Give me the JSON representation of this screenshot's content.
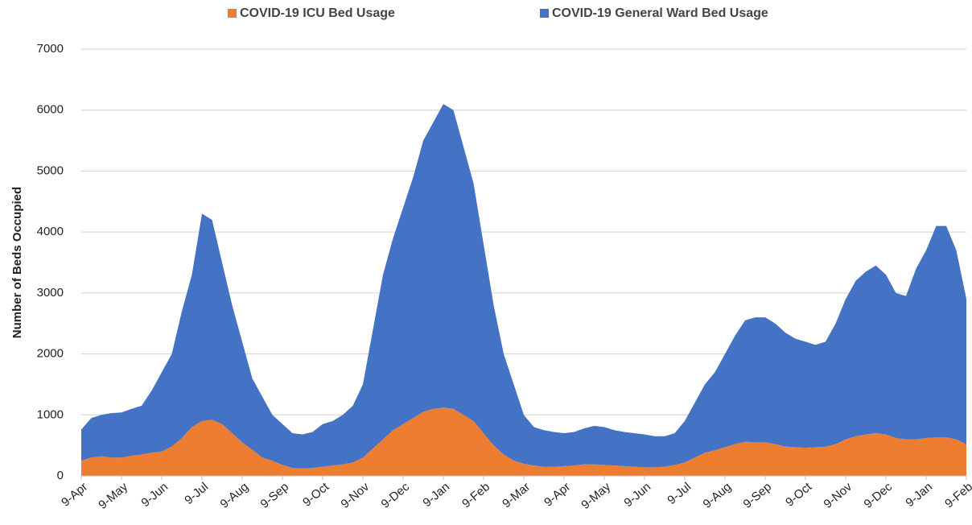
{
  "chart_data": {
    "type": "stacked_area",
    "y_label": "Number of Beds Occupied",
    "categories": [
      "9-Apr",
      null,
      null,
      null,
      "9-May",
      null,
      null,
      null,
      "9-Jun",
      null,
      null,
      null,
      "9-Jul",
      null,
      null,
      null,
      "9-Aug",
      null,
      null,
      null,
      "9-Sep",
      null,
      null,
      null,
      "9-Oct",
      null,
      null,
      null,
      "9-Nov",
      null,
      null,
      null,
      "9-Dec",
      null,
      null,
      null,
      "9-Jan",
      null,
      null,
      null,
      "9-Feb",
      null,
      null,
      null,
      "9-Mar",
      null,
      null,
      null,
      "9-Apr",
      null,
      null,
      null,
      "9-May",
      null,
      null,
      null,
      "9-Jun",
      null,
      null,
      null,
      "9-Jul",
      null,
      null,
      null,
      "9-Aug",
      null,
      null,
      null,
      "9-Sep",
      null,
      null,
      null,
      "9-Oct",
      null,
      null,
      null,
      "9-Nov",
      null,
      null,
      null,
      "9-Dec",
      null,
      null,
      null,
      "9-Jan",
      null,
      null,
      null,
      "9-Feb"
    ],
    "series": [
      {
        "name": "COVID-19 ICU Bed Usage",
        "color": "#ed7d31",
        "values": [
          250,
          300,
          320,
          300,
          300,
          330,
          350,
          380,
          400,
          480,
          620,
          800,
          900,
          920,
          850,
          700,
          550,
          430,
          300,
          250,
          180,
          130,
          120,
          130,
          150,
          170,
          190,
          220,
          300,
          450,
          600,
          750,
          850,
          950,
          1050,
          1100,
          1120,
          1100,
          1000,
          900,
          700,
          500,
          350,
          250,
          200,
          170,
          150,
          150,
          160,
          170,
          190,
          190,
          180,
          170,
          160,
          150,
          140,
          140,
          150,
          180,
          220,
          300,
          380,
          420,
          470,
          520,
          560,
          550,
          550,
          520,
          480,
          470,
          460,
          470,
          480,
          520,
          600,
          650,
          680,
          700,
          680,
          620,
          600,
          600,
          620,
          630,
          630,
          600,
          520
        ]
      },
      {
        "name": "COVID-19 General Ward Bed Usage",
        "color": "#4472c4",
        "values": [
          510,
          650,
          680,
          730,
          740,
          770,
          800,
          1020,
          1300,
          1520,
          2080,
          2500,
          3400,
          3280,
          2650,
          2100,
          1650,
          1170,
          1000,
          750,
          670,
          570,
          560,
          590,
          700,
          730,
          810,
          930,
          1200,
          1950,
          2700,
          3150,
          3550,
          3950,
          4450,
          4700,
          4980,
          4900,
          4400,
          3900,
          3100,
          2300,
          1650,
          1250,
          800,
          630,
          600,
          570,
          540,
          550,
          590,
          630,
          620,
          580,
          560,
          550,
          540,
          510,
          500,
          520,
          680,
          900,
          1120,
          1280,
          1530,
          1780,
          1990,
          2050,
          2050,
          1980,
          1870,
          1780,
          1740,
          1680,
          1720,
          1980,
          2300,
          2550,
          2670,
          2750,
          2620,
          2380,
          2350,
          2800,
          3080,
          3470,
          3470,
          3100,
          2380
        ]
      }
    ],
    "ylim": [
      0,
      7000
    ],
    "yticks": [
      0,
      1000,
      2000,
      3000,
      4000,
      5000,
      6000,
      7000
    ],
    "grid": true,
    "legend": "top"
  }
}
